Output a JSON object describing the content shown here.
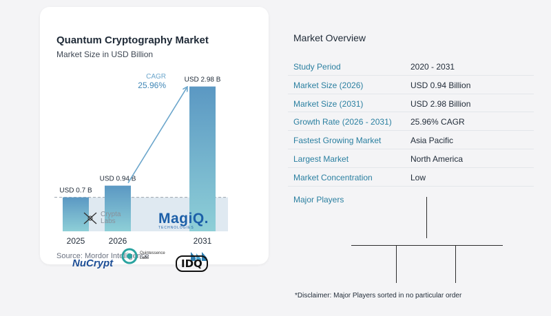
{
  "chart_data": {
    "type": "bar",
    "title": "Quantum Cryptography Market",
    "subtitle": "Market Size in USD Billion",
    "categories": [
      "2025",
      "2026",
      "2031"
    ],
    "values": [
      0.7,
      0.94,
      2.98
    ],
    "data_labels": [
      "USD 0.7 B",
      "USD 0.94 B",
      "USD 2.98 B"
    ],
    "cagr_label": "CAGR",
    "cagr_value": "25.96%",
    "ylim": [
      0,
      3.4
    ],
    "colors": {
      "bar_top": "#5b98c3",
      "bar_bottom": "#8ecfd7",
      "arrow": "#6aa5cb",
      "band": "#dfe9f1"
    }
  },
  "source": "Source: Mordor Intelligence",
  "overview": {
    "title": "Market Overview",
    "rows": [
      {
        "label": "Study Period",
        "value": "2020 - 2031"
      },
      {
        "label": "Market Size (2026)",
        "value": "USD 0.94 Billion"
      },
      {
        "label": "Market Size (2031)",
        "value": "USD 2.98 Billion"
      },
      {
        "label": "Growth Rate (2026 - 2031)",
        "value": "25.96% CAGR"
      },
      {
        "label": "Fastest Growing Market",
        "value": "Asia Pacific"
      },
      {
        "label": "Largest Market",
        "value": "North America"
      },
      {
        "label": "Market Concentration",
        "value": "Low"
      }
    ]
  },
  "players": {
    "title": "Major Players",
    "crypta": "Crypta Labs",
    "crypta_line1": "Crypta",
    "crypta_line2": "Labs",
    "magiq": "MagiQ.",
    "magiq_sub": "TECHNOLOGIES",
    "nucrypt": "NuCrypt",
    "quint_line1": "Quintessence",
    "quint_line2": "Labs",
    "idq": "IDQ"
  },
  "disclaimer": "*Disclaimer: Major Players sorted in no particular order"
}
